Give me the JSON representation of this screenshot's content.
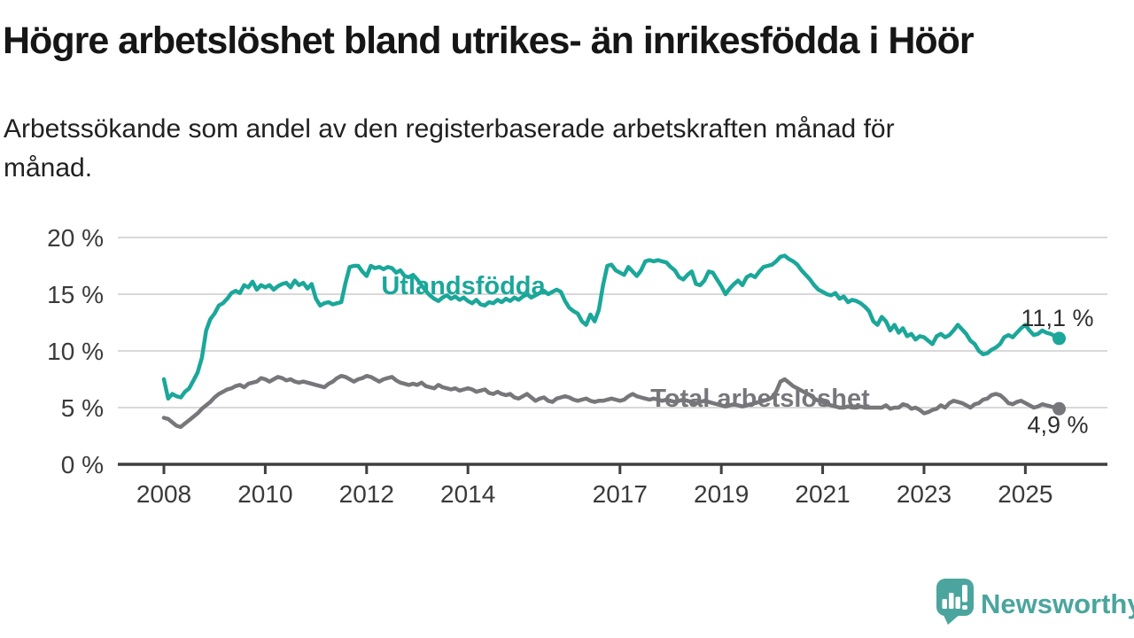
{
  "title": "Högre arbetslöshet bland utrikes- än inrikesfödda i Höör",
  "subtitle_lines": [
    "Arbetssökande som andel av den registerbaserade arbetskraften månad för",
    "månad."
  ],
  "branding": {
    "logo_text": "Newsworthy",
    "logo_color": "#4BA59E",
    "logo_icon": "speech-bubble-bar-chart"
  },
  "chart_data": {
    "type": "line",
    "x_unit": "month",
    "x_start": "2008-01",
    "x_end": "2025-09",
    "x_tick_years": [
      2008,
      2010,
      2012,
      2014,
      2017,
      2019,
      2021,
      2023,
      2025
    ],
    "y_ticks_pct": [
      0,
      5,
      10,
      15,
      20
    ],
    "y_tick_label_suffix": " %",
    "ylim": [
      0,
      20
    ],
    "grid": true,
    "legend_position": "inline-labels",
    "axis_color": "#3a3a3a",
    "grid_color": "#d9d9d9",
    "series": [
      {
        "name": "Utlandsfödda",
        "color": "#1BA79A",
        "end_value_label": "11,1 %",
        "values": [
          7.5,
          5.8,
          6.2,
          6.0,
          5.9,
          6.4,
          6.7,
          7.4,
          8.1,
          9.4,
          11.8,
          12.8,
          13.3,
          14.0,
          14.2,
          14.6,
          15.1,
          15.3,
          15.1,
          15.8,
          15.6,
          16.1,
          15.4,
          15.8,
          15.6,
          15.8,
          15.4,
          15.7,
          15.9,
          16.0,
          15.6,
          16.2,
          15.8,
          16.0,
          15.5,
          15.9,
          14.6,
          14.0,
          14.2,
          14.3,
          14.1,
          14.2,
          14.3,
          16.0,
          17.4,
          17.5,
          17.5,
          17.0,
          16.6,
          17.5,
          17.3,
          17.4,
          17.2,
          17.4,
          17.3,
          16.9,
          17.1,
          16.6,
          16.5,
          16.7,
          16.3,
          15.8,
          15.3,
          14.9,
          14.6,
          14.4,
          14.7,
          14.9,
          14.6,
          14.8,
          14.5,
          14.7,
          14.4,
          14.2,
          14.5,
          14.1,
          14.0,
          14.3,
          14.2,
          14.5,
          14.3,
          14.6,
          14.4,
          14.7,
          14.5,
          14.8,
          15.0,
          14.7,
          14.9,
          15.1,
          15.3,
          15.0,
          15.2,
          15.4,
          15.2,
          14.4,
          13.8,
          13.5,
          13.3,
          12.6,
          12.3,
          13.2,
          12.6,
          13.6,
          15.8,
          17.5,
          17.6,
          17.1,
          16.9,
          16.7,
          17.4,
          17.0,
          16.6,
          17.1,
          17.9,
          18.0,
          17.9,
          18.0,
          17.9,
          17.8,
          17.4,
          17.1,
          16.5,
          16.3,
          16.7,
          17.0,
          15.9,
          15.8,
          16.2,
          17.0,
          16.9,
          16.3,
          15.7,
          15.0,
          15.5,
          15.9,
          16.2,
          15.8,
          16.5,
          16.7,
          16.5,
          17.0,
          17.4,
          17.5,
          17.6,
          17.9,
          18.3,
          18.4,
          18.1,
          17.9,
          17.6,
          17.1,
          16.7,
          16.3,
          15.8,
          15.4,
          15.2,
          15.0,
          14.9,
          15.1,
          14.6,
          14.8,
          14.3,
          14.5,
          14.4,
          14.2,
          13.9,
          13.5,
          12.6,
          12.3,
          13.0,
          12.6,
          11.8,
          12.3,
          11.6,
          12.0,
          11.3,
          11.5,
          11.0,
          11.3,
          11.2,
          10.9,
          10.6,
          11.3,
          11.5,
          11.2,
          11.4,
          11.8,
          12.3,
          11.9,
          11.5,
          10.9,
          10.6,
          10.0,
          9.7,
          9.8,
          10.1,
          10.3,
          10.6,
          11.2,
          11.4,
          11.2,
          11.6,
          12.0,
          12.3,
          11.8,
          11.4,
          11.5,
          11.8,
          11.6,
          11.5,
          11.3,
          11.1
        ]
      },
      {
        "name": "Total arbetslöshet",
        "color": "#77777B",
        "end_value_label": "4,9 %",
        "values": [
          4.1,
          4.0,
          3.7,
          3.4,
          3.3,
          3.6,
          3.9,
          4.2,
          4.5,
          4.9,
          5.2,
          5.5,
          5.9,
          6.2,
          6.4,
          6.6,
          6.7,
          6.9,
          7.0,
          6.8,
          7.1,
          7.2,
          7.3,
          7.6,
          7.5,
          7.3,
          7.5,
          7.7,
          7.6,
          7.4,
          7.5,
          7.3,
          7.2,
          7.3,
          7.2,
          7.1,
          7.0,
          6.9,
          6.8,
          7.1,
          7.3,
          7.6,
          7.8,
          7.7,
          7.5,
          7.3,
          7.5,
          7.6,
          7.8,
          7.7,
          7.5,
          7.3,
          7.5,
          7.6,
          7.7,
          7.4,
          7.2,
          7.1,
          7.0,
          7.1,
          7.0,
          7.2,
          6.9,
          6.8,
          6.7,
          7.0,
          6.8,
          6.7,
          6.6,
          6.7,
          6.5,
          6.6,
          6.7,
          6.6,
          6.4,
          6.5,
          6.6,
          6.3,
          6.2,
          6.4,
          6.2,
          6.1,
          6.2,
          5.9,
          5.8,
          6.0,
          6.2,
          5.9,
          5.6,
          5.8,
          5.9,
          5.6,
          5.5,
          5.8,
          5.9,
          6.0,
          5.9,
          5.7,
          5.6,
          5.7,
          5.8,
          5.6,
          5.5,
          5.6,
          5.6,
          5.7,
          5.8,
          5.7,
          5.6,
          5.7,
          6.0,
          6.2,
          6.0,
          5.9,
          5.8,
          5.7,
          5.8,
          5.7,
          5.6,
          5.7,
          5.6,
          5.5,
          5.6,
          5.7,
          5.6,
          5.5,
          5.4,
          5.5,
          5.6,
          5.5,
          5.4,
          5.3,
          5.2,
          5.1,
          5.2,
          5.3,
          5.2,
          5.1,
          5.2,
          5.3,
          5.4,
          5.5,
          5.6,
          5.7,
          5.9,
          6.4,
          7.3,
          7.5,
          7.2,
          6.9,
          6.7,
          6.5,
          6.3,
          6.1,
          5.8,
          5.6,
          5.5,
          5.3,
          5.2,
          5.1,
          5.0,
          5.0,
          5.1,
          5.0,
          5.0,
          5.1,
          5.0,
          5.0,
          5.0,
          5.0,
          5.0,
          5.2,
          4.9,
          5.0,
          5.0,
          5.3,
          5.2,
          4.9,
          5.0,
          4.8,
          4.5,
          4.6,
          4.8,
          4.9,
          5.2,
          5.0,
          5.4,
          5.6,
          5.5,
          5.4,
          5.2,
          5.0,
          5.3,
          5.4,
          5.7,
          5.8,
          6.1,
          6.2,
          6.1,
          5.8,
          5.4,
          5.3,
          5.5,
          5.6,
          5.4,
          5.2,
          5.0,
          5.1,
          5.3,
          5.2,
          5.1,
          5.0,
          4.9
        ]
      }
    ]
  }
}
